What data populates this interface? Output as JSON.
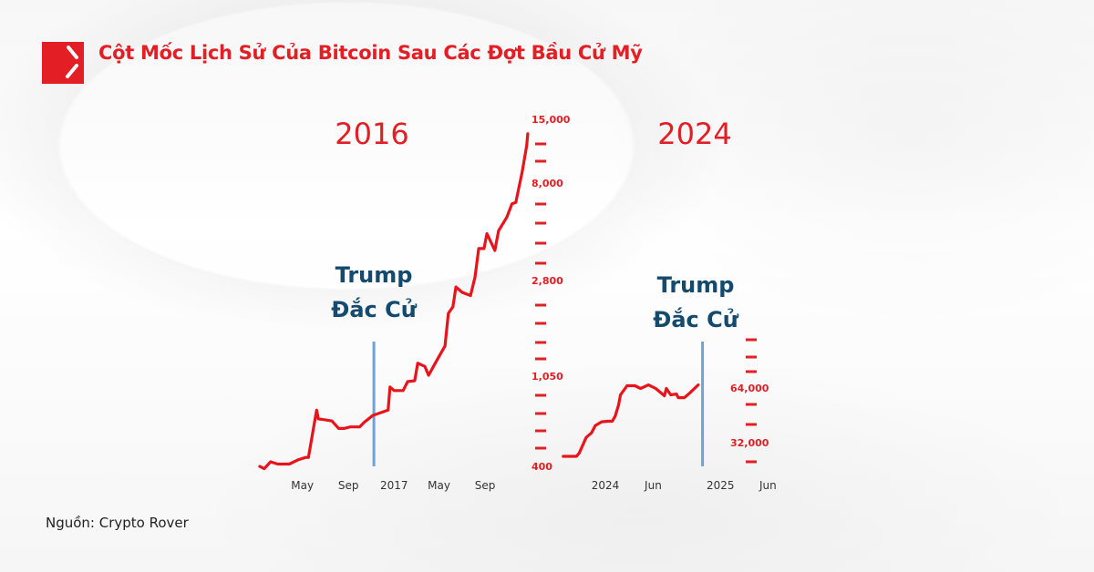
{
  "header": {
    "title": "Cột Mốc Lịch Sử Của Bitcoin Sau Các Đợt Bầu Cử Mỹ",
    "brand_color": "#e31e24"
  },
  "source": "Nguồn: Crypto Rover",
  "chart_data": [
    {
      "type": "line",
      "title": "2016",
      "annotation": {
        "label_line1": "Trump",
        "label_line2": "Đắc Cử",
        "date": "2016-11-08",
        "color": "#6fa3d8"
      },
      "y_scale": "log",
      "ylim": [
        400,
        15000
      ],
      "y_tick_labels": [
        "400",
        "1,050",
        "2,800",
        "8,000",
        "15,000"
      ],
      "y_tick_values": [
        400,
        1050,
        2800,
        8000,
        15000
      ],
      "x_tick_labels": [
        "May",
        "Sep",
        "2017",
        "May",
        "Sep"
      ],
      "x_tick_dates": [
        "2016-05-01",
        "2016-09-01",
        "2017-01-01",
        "2017-05-01",
        "2017-09-01"
      ],
      "line_color": "#e8141b",
      "series": [
        {
          "points": [
            [
              "2016-01-08",
              400
            ],
            [
              "2016-01-20",
              390
            ],
            [
              "2016-02-06",
              420
            ],
            [
              "2016-02-25",
              410
            ],
            [
              "2016-03-27",
              410
            ],
            [
              "2016-04-21",
              430
            ],
            [
              "2016-05-10",
              440
            ],
            [
              "2016-05-17",
              440
            ],
            [
              "2016-06-08",
              730
            ],
            [
              "2016-06-13",
              665
            ],
            [
              "2016-06-25",
              660
            ],
            [
              "2016-07-19",
              650
            ],
            [
              "2016-08-06",
              600
            ],
            [
              "2016-08-20",
              600
            ],
            [
              "2016-09-06",
              610
            ],
            [
              "2016-10-01",
              610
            ],
            [
              "2016-10-13",
              640
            ],
            [
              "2016-11-05",
              690
            ],
            [
              "2016-12-16",
              730
            ],
            [
              "2016-12-21",
              935
            ],
            [
              "2017-01-01",
              900
            ],
            [
              "2017-01-25",
              900
            ],
            [
              "2017-02-06",
              990
            ],
            [
              "2017-02-25",
              1000
            ],
            [
              "2017-03-05",
              1200
            ],
            [
              "2017-03-24",
              1160
            ],
            [
              "2017-04-03",
              1060
            ],
            [
              "2017-04-27",
              1250
            ],
            [
              "2017-05-17",
              1430
            ],
            [
              "2017-05-26",
              2000
            ],
            [
              "2017-06-07",
              2140
            ],
            [
              "2017-06-15",
              2620
            ],
            [
              "2017-07-02",
              2480
            ],
            [
              "2017-07-24",
              2400
            ],
            [
              "2017-08-05",
              2900
            ],
            [
              "2017-08-15",
              3950
            ],
            [
              "2017-08-29",
              3950
            ],
            [
              "2017-09-06",
              4640
            ],
            [
              "2017-09-27",
              3870
            ],
            [
              "2017-10-07",
              4790
            ],
            [
              "2017-10-29",
              5530
            ],
            [
              "2017-11-12",
              6400
            ],
            [
              "2017-11-22",
              6500
            ],
            [
              "2017-12-09",
              8900
            ],
            [
              "2017-12-21",
              11560
            ],
            [
              "2017-12-24",
              13000
            ]
          ]
        }
      ]
    },
    {
      "type": "line",
      "title": "2024",
      "annotation": {
        "label_line1": "Trump",
        "label_line2": "Đắc Cử",
        "date": "2024-11-05",
        "color": "#6fa3d8"
      },
      "y_scale": "log",
      "y_tick_labels": [
        "32,000",
        "64,000"
      ],
      "y_tick_values": [
        32000,
        64000
      ],
      "x_tick_labels": [
        "2024",
        "Jun",
        "2025",
        "Jun"
      ],
      "x_tick_dates": [
        "2024-01-01",
        "2024-06-01",
        "2025-01-01",
        "2025-06-01"
      ],
      "line_color": "#e8141b",
      "series": [
        {
          "points": [
            [
              "2023-08-20",
              26900
            ],
            [
              "2023-10-01",
              26900
            ],
            [
              "2023-10-10",
              28100
            ],
            [
              "2023-11-01",
              34200
            ],
            [
              "2023-11-18",
              36200
            ],
            [
              "2023-11-30",
              39700
            ],
            [
              "2023-12-20",
              41700
            ],
            [
              "2024-01-09",
              42000
            ],
            [
              "2024-01-23",
              42000
            ],
            [
              "2024-02-01",
              44700
            ],
            [
              "2024-02-12",
              51600
            ],
            [
              "2024-02-18",
              58700
            ],
            [
              "2024-03-10",
              65900
            ],
            [
              "2024-04-04",
              65900
            ],
            [
              "2024-04-22",
              63600
            ],
            [
              "2024-05-17",
              66600
            ],
            [
              "2024-06-09",
              63600
            ],
            [
              "2024-07-07",
              58000
            ],
            [
              "2024-07-13",
              63600
            ],
            [
              "2024-07-27",
              58700
            ],
            [
              "2024-08-14",
              59300
            ],
            [
              "2024-08-20",
              56600
            ],
            [
              "2024-09-08",
              56600
            ],
            [
              "2024-09-25",
              59900
            ],
            [
              "2024-10-22",
              66600
            ]
          ]
        }
      ]
    }
  ]
}
